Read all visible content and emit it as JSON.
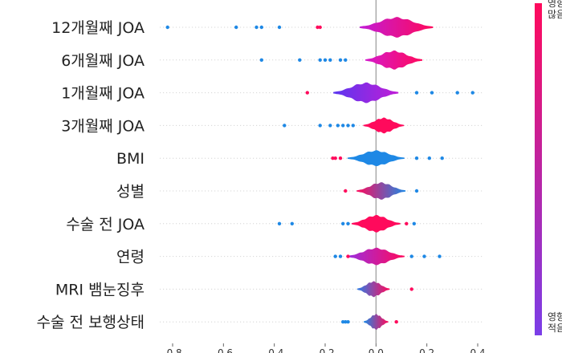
{
  "chart_data": {
    "type": "violin",
    "features": [
      {
        "label": "12개월째 JOA",
        "center": 0.08,
        "spread": 0.09,
        "height": 13,
        "color_low": "#c21cd6",
        "color_high": "#ff0a5c",
        "dots": [
          [
            -0.82,
            0.0
          ],
          [
            -0.55,
            0.0
          ],
          [
            -0.47,
            0.0
          ],
          [
            -0.45,
            0.0
          ],
          [
            -0.38,
            0.0
          ],
          [
            -0.23,
            1.0
          ],
          [
            -0.22,
            1.0
          ]
        ]
      },
      {
        "label": "6개월째 JOA",
        "center": 0.07,
        "spread": 0.07,
        "height": 12,
        "color_low": "#d51bcc",
        "color_high": "#ff0a5c",
        "dots": [
          [
            -0.45,
            0.0
          ],
          [
            -0.3,
            0.0
          ],
          [
            -0.22,
            0.0
          ],
          [
            -0.2,
            0.0
          ],
          [
            -0.18,
            0.0
          ],
          [
            -0.14,
            0.0
          ],
          [
            -0.12,
            0.0
          ]
        ]
      },
      {
        "label": "1개월째 JOA",
        "center": -0.04,
        "spread": 0.08,
        "height": 13,
        "color_low": "#5b37f0",
        "color_high": "#c01dd6",
        "dots": [
          [
            -0.27,
            1.0
          ],
          [
            0.16,
            0.0
          ],
          [
            0.22,
            0.0
          ],
          [
            0.32,
            0.0
          ],
          [
            0.38,
            0.0
          ]
        ]
      },
      {
        "label": "3개월째 JOA",
        "center": 0.03,
        "spread": 0.05,
        "height": 10,
        "color_low": "#ff0a5c",
        "color_high": "#ff0a5c",
        "dots": [
          [
            -0.36,
            0.0
          ],
          [
            -0.22,
            0.0
          ],
          [
            -0.18,
            0.0
          ],
          [
            -0.15,
            0.0
          ],
          [
            -0.13,
            0.0
          ],
          [
            -0.11,
            0.0
          ],
          [
            -0.09,
            0.0
          ]
        ]
      },
      {
        "label": "BMI",
        "center": 0.0,
        "spread": 0.07,
        "height": 10,
        "color_low": "#1e88e5",
        "color_high": "#1e88e5",
        "dots": [
          [
            -0.17,
            1.0
          ],
          [
            -0.16,
            1.0
          ],
          [
            -0.14,
            1.0
          ],
          [
            0.16,
            0.0
          ],
          [
            0.21,
            0.0
          ],
          [
            0.26,
            0.0
          ]
        ]
      },
      {
        "label": "성별",
        "center": 0.02,
        "spread": 0.06,
        "height": 11,
        "color_low": "#ff0a5c",
        "color_high": "#1e88e5",
        "dots": [
          [
            -0.12,
            1.0
          ],
          [
            0.16,
            0.0
          ]
        ]
      },
      {
        "label": "수술 전 JOA",
        "center": 0.0,
        "spread": 0.06,
        "height": 11,
        "color_low": "#ff0a5c",
        "color_high": "#ff0a5c",
        "dots": [
          [
            -0.38,
            0.0
          ],
          [
            -0.33,
            0.0
          ],
          [
            -0.13,
            0.0
          ],
          [
            -0.11,
            0.0
          ],
          [
            0.12,
            1.0
          ],
          [
            0.15,
            0.0
          ]
        ]
      },
      {
        "label": "연령",
        "center": 0.0,
        "spread": 0.07,
        "height": 11,
        "color_low": "#9b2ee0",
        "color_high": "#ff0a5c",
        "dots": [
          [
            -0.16,
            0.0
          ],
          [
            -0.14,
            0.0
          ],
          [
            -0.11,
            1.0
          ],
          [
            0.14,
            0.0
          ],
          [
            0.19,
            0.0
          ],
          [
            0.25,
            0.0
          ]
        ]
      },
      {
        "label": "MRI 뱀눈징후",
        "center": -0.01,
        "spread": 0.04,
        "height": 10,
        "color_low": "#2f7de6",
        "color_high": "#ff0a5c",
        "dots": [
          [
            0.14,
            1.0
          ]
        ]
      },
      {
        "label": "수술 전 보행상태",
        "center": 0.0,
        "spread": 0.03,
        "height": 10,
        "color_low": "#1e88e5",
        "color_high": "#ff0a5c",
        "dots": [
          [
            -0.13,
            0.0
          ],
          [
            -0.12,
            0.0
          ],
          [
            -0.11,
            0.0
          ],
          [
            0.08,
            1.0
          ]
        ]
      }
    ],
    "x_ticks": [
      "-0.8",
      "-0.6",
      "-0.4",
      "-0.2",
      "0.0",
      "0.2",
      "0.4"
    ],
    "xlim": [
      -0.85,
      0.42
    ],
    "colorbar_high_label": "영향 많음",
    "colorbar_low_label": "영향 적음",
    "colors": {
      "high": "#ff0a5c",
      "low": "#7a3ee8",
      "blue": "#1e88e5",
      "zero_line": "#999999",
      "row_dots": "#cccccc"
    }
  }
}
